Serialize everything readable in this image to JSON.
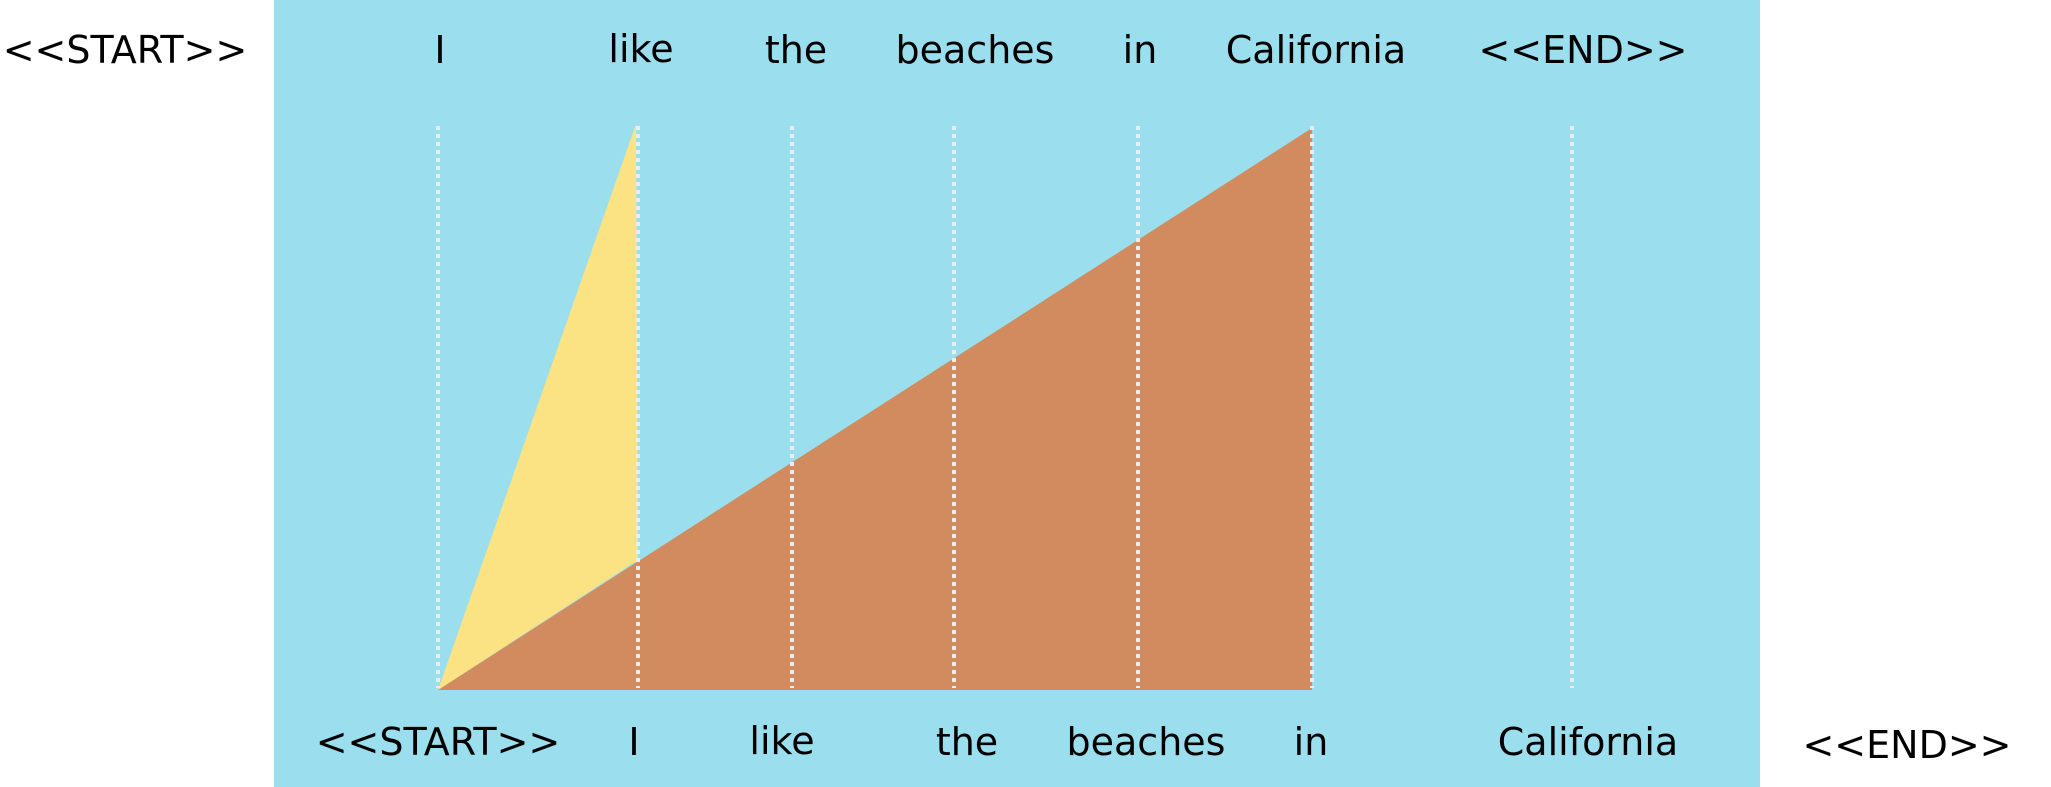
{
  "top_tokens": [
    "<<START>>",
    "I",
    "like",
    "the",
    "beaches",
    "in",
    "California",
    "<<END>>"
  ],
  "bottom_tokens": [
    "<<START>>",
    "I",
    "like",
    "the",
    "beaches",
    "in",
    "California",
    "<<END>>"
  ],
  "colors": {
    "panel": "#9bdeed",
    "short_span": "#fbe283",
    "long_span": "#d18b5e",
    "guide_line": "#e8eef0",
    "text": "#000000"
  }
}
